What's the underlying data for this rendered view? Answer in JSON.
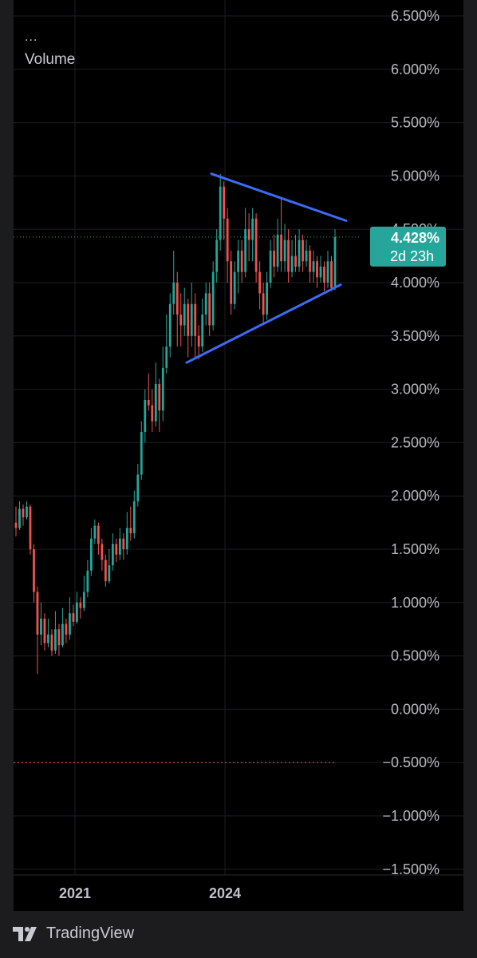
{
  "legend": {
    "dots": "...",
    "volume_label": "Volume"
  },
  "brand": {
    "name": "TradingView",
    "logo_icon": "tradingview-logo-icon"
  },
  "colors": {
    "up": "#26a69a",
    "down": "#ef5350",
    "trendline": "#3d6bf5",
    "price_label_bg": "#26a69a",
    "grid": "#1e1e22",
    "background": "#000000"
  },
  "price_label": {
    "value": "4.428%",
    "countdown": "2d 23h"
  },
  "chart_data": {
    "type": "candlestick",
    "title": "",
    "x_tick_labels": [
      "2021",
      "2024"
    ],
    "y_ticks": [
      6.5,
      6.0,
      5.5,
      5.0,
      4.5,
      4.0,
      3.5,
      3.0,
      2.5,
      2.0,
      1.5,
      1.0,
      0.5,
      0.0,
      -0.5,
      -1.0,
      -1.5
    ],
    "y_tick_labels": [
      "6.500%",
      "6.000%",
      "5.500%",
      "5.000%",
      "4.500%",
      "4.000%",
      "3.500%",
      "3.000%",
      "2.500%",
      "2.000%",
      "1.500%",
      "1.000%",
      "0.500%",
      "0.000%",
      "−0.500%",
      "−1.000%",
      "−1.500%"
    ],
    "ylim": [
      -1.6,
      6.7
    ],
    "current_value": 4.428,
    "reference_line_value": -0.5,
    "grid": true,
    "trendlines": [
      {
        "name": "upper",
        "from": [
          0,
          5.02
        ],
        "to": [
          1,
          4.58
        ]
      },
      {
        "name": "lower",
        "from": [
          0,
          3.25
        ],
        "to": [
          1,
          3.98
        ]
      }
    ],
    "candles": [
      [
        1.75,
        1.7,
        1.9,
        1.62
      ],
      [
        1.7,
        1.88,
        1.95,
        1.68
      ],
      [
        1.88,
        1.8,
        1.92,
        1.72
      ],
      [
        1.8,
        1.9,
        1.95,
        1.78
      ],
      [
        1.9,
        1.5,
        1.92,
        1.45
      ],
      [
        1.5,
        1.1,
        1.55,
        1.0
      ],
      [
        1.1,
        0.7,
        1.15,
        0.33
      ],
      [
        0.7,
        0.85,
        1.0,
        0.6
      ],
      [
        0.85,
        0.62,
        0.9,
        0.55
      ],
      [
        0.62,
        0.7,
        0.85,
        0.58
      ],
      [
        0.7,
        0.55,
        0.75,
        0.5
      ],
      [
        0.55,
        0.75,
        0.92,
        0.52
      ],
      [
        0.75,
        0.6,
        0.8,
        0.5
      ],
      [
        0.6,
        0.8,
        0.95,
        0.58
      ],
      [
        0.8,
        0.7,
        0.85,
        0.62
      ],
      [
        0.7,
        0.9,
        1.05,
        0.65
      ],
      [
        0.9,
        0.82,
        0.98,
        0.78
      ],
      [
        0.82,
        1.0,
        1.1,
        0.8
      ],
      [
        1.0,
        0.95,
        1.05,
        0.85
      ],
      [
        0.95,
        1.1,
        1.25,
        0.92
      ],
      [
        1.1,
        1.3,
        1.4,
        1.05
      ],
      [
        1.3,
        1.6,
        1.7,
        1.25
      ],
      [
        1.6,
        1.72,
        1.78,
        1.55
      ],
      [
        1.72,
        1.55,
        1.75,
        1.45
      ],
      [
        1.55,
        1.4,
        1.6,
        1.3
      ],
      [
        1.4,
        1.2,
        1.45,
        1.15
      ],
      [
        1.2,
        1.35,
        1.5,
        1.18
      ],
      [
        1.35,
        1.55,
        1.65,
        1.3
      ],
      [
        1.55,
        1.45,
        1.6,
        1.38
      ],
      [
        1.45,
        1.6,
        1.7,
        1.4
      ],
      [
        1.6,
        1.5,
        1.65,
        1.4
      ],
      [
        1.5,
        1.7,
        1.85,
        1.45
      ],
      [
        1.7,
        1.65,
        1.9,
        1.58
      ],
      [
        1.65,
        1.95,
        2.05,
        1.6
      ],
      [
        1.95,
        2.2,
        2.3,
        1.9
      ],
      [
        2.2,
        2.6,
        2.7,
        2.15
      ],
      [
        2.6,
        2.9,
        3.0,
        2.5
      ],
      [
        2.9,
        2.85,
        3.15,
        2.8
      ],
      [
        2.85,
        2.7,
        3.0,
        2.6
      ],
      [
        2.7,
        3.05,
        3.25,
        2.65
      ],
      [
        3.05,
        2.8,
        3.1,
        2.6
      ],
      [
        2.8,
        3.2,
        3.4,
        2.7
      ],
      [
        3.2,
        3.4,
        3.7,
        3.15
      ],
      [
        3.4,
        3.8,
        3.9,
        3.3
      ],
      [
        3.8,
        4.0,
        4.3,
        3.7
      ],
      [
        4.0,
        3.7,
        4.1,
        3.4
      ],
      [
        3.7,
        3.6,
        3.9,
        3.4
      ],
      [
        3.6,
        3.8,
        3.95,
        3.5
      ],
      [
        3.8,
        3.5,
        3.85,
        3.3
      ],
      [
        3.5,
        3.8,
        4.0,
        3.4
      ],
      [
        3.8,
        3.5,
        3.9,
        3.3
      ],
      [
        3.5,
        3.4,
        3.6,
        3.28
      ],
      [
        3.4,
        3.7,
        3.85,
        3.35
      ],
      [
        3.7,
        3.9,
        4.0,
        3.6
      ],
      [
        3.9,
        3.6,
        4.0,
        3.5
      ],
      [
        3.6,
        4.1,
        4.2,
        3.55
      ],
      [
        4.1,
        4.4,
        4.5,
        4.0
      ],
      [
        4.4,
        4.9,
        5.02,
        4.3
      ],
      [
        4.9,
        4.6,
        4.95,
        4.4
      ],
      [
        4.6,
        4.2,
        4.7,
        4.0
      ],
      [
        4.2,
        3.8,
        4.3,
        3.7
      ],
      [
        3.8,
        4.1,
        4.2,
        3.75
      ],
      [
        4.1,
        4.3,
        4.4,
        3.9
      ],
      [
        4.3,
        4.1,
        4.4,
        4.0
      ],
      [
        4.1,
        4.5,
        4.7,
        4.05
      ],
      [
        4.5,
        4.4,
        4.65,
        4.2
      ],
      [
        4.4,
        4.6,
        4.7,
        4.2
      ],
      [
        4.6,
        4.1,
        4.65,
        4.0
      ],
      [
        4.1,
        3.9,
        4.2,
        3.75
      ],
      [
        3.9,
        3.7,
        4.0,
        3.6
      ],
      [
        3.7,
        4.0,
        4.1,
        3.65
      ],
      [
        4.0,
        4.3,
        4.4,
        3.95
      ],
      [
        4.3,
        4.15,
        4.45,
        4.05
      ],
      [
        4.15,
        4.45,
        4.6,
        4.1
      ],
      [
        4.45,
        4.2,
        4.8,
        4.1
      ],
      [
        4.2,
        4.4,
        4.55,
        4.1
      ],
      [
        4.4,
        4.1,
        4.5,
        4.0
      ],
      [
        4.1,
        4.25,
        4.4,
        4.05
      ],
      [
        4.25,
        4.15,
        4.45,
        4.1
      ],
      [
        4.15,
        4.4,
        4.5,
        4.1
      ],
      [
        4.4,
        4.2,
        4.45,
        4.1
      ],
      [
        4.2,
        4.3,
        4.4,
        4.15
      ],
      [
        4.3,
        4.1,
        4.35,
        4.0
      ],
      [
        4.1,
        4.2,
        4.3,
        4.0
      ],
      [
        4.2,
        4.05,
        4.25,
        3.95
      ],
      [
        4.05,
        4.15,
        4.25,
        4.0
      ],
      [
        4.15,
        4.0,
        4.2,
        3.92
      ],
      [
        4.0,
        4.2,
        4.3,
        3.95
      ],
      [
        4.2,
        3.95,
        4.25,
        3.92
      ],
      [
        3.95,
        4.428,
        4.5,
        3.93
      ]
    ]
  }
}
